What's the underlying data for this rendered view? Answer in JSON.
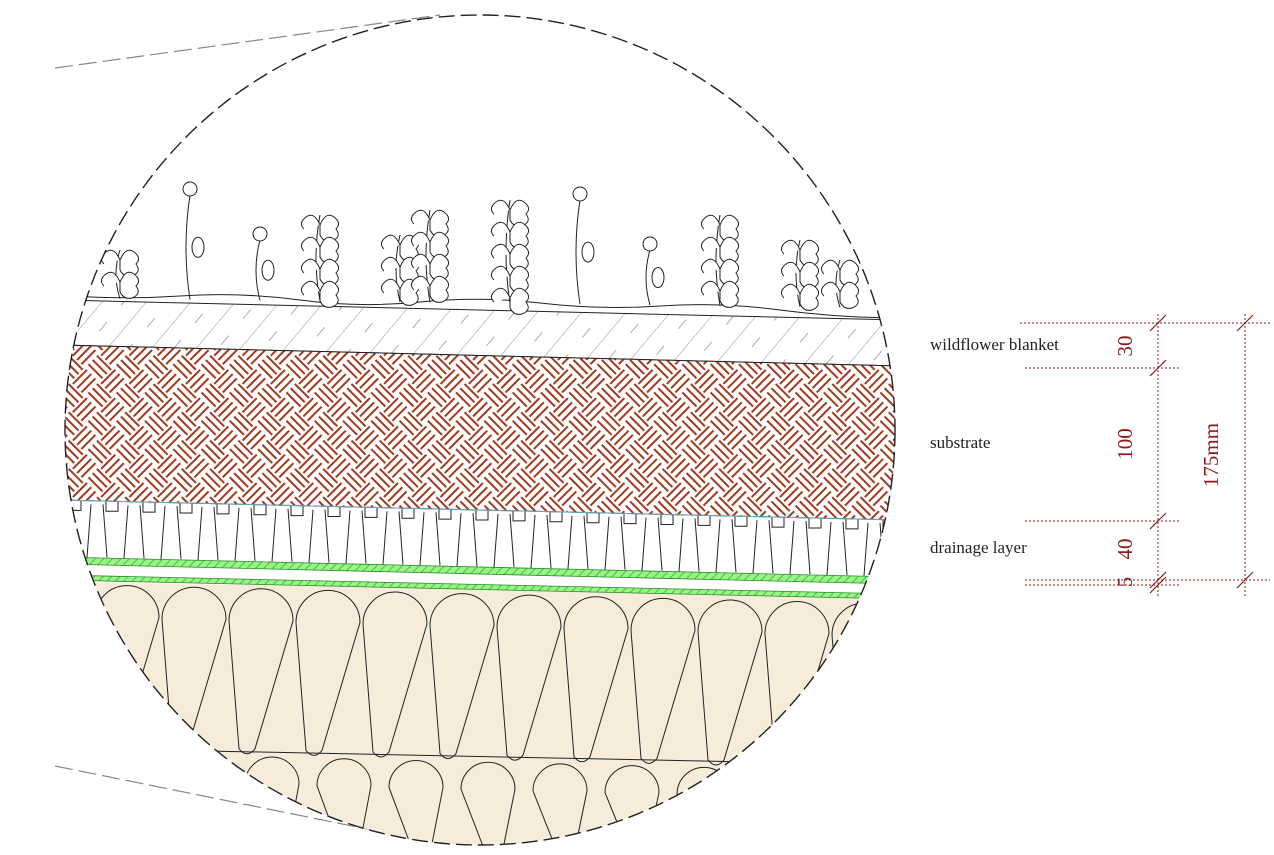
{
  "layers": [
    {
      "label": "wildflower blanket",
      "thickness": "30"
    },
    {
      "label": "substrate",
      "thickness": "100"
    },
    {
      "label": "drainage layer",
      "thickness": "40"
    }
  ],
  "membrane": {
    "thickness": "5"
  },
  "total": "175mm"
}
